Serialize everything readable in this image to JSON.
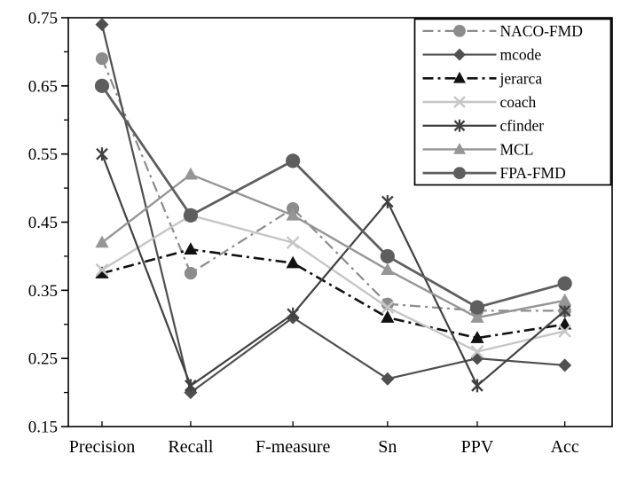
{
  "chart_data": {
    "type": "line",
    "title": "",
    "xlabel": "",
    "ylabel": "",
    "categories": [
      "Precision",
      "Recall",
      "F-measure",
      "Sn",
      "PPV",
      "Acc"
    ],
    "ylim": [
      0.15,
      0.75
    ],
    "ytick_step": 0.1,
    "ytick_minor_step": 0.05,
    "ytick_labels": [
      "0.75",
      "0.65",
      "0.55",
      "0.45",
      "0.35",
      "0.25",
      "0.15"
    ],
    "grid": false,
    "legend_position": "top-right",
    "background_color": "#ffffff",
    "axis_color": "#000000",
    "series": [
      {
        "name": "NACO-FMD",
        "marker": "circle",
        "line_style": "dash-dot",
        "color": "#8c8c8c",
        "width": 2.2,
        "values": [
          0.69,
          0.375,
          0.47,
          0.33,
          0.32,
          0.32
        ]
      },
      {
        "name": "mcode",
        "marker": "diamond",
        "line_style": "solid",
        "color": "#4f4f4f",
        "width": 2.2,
        "values": [
          0.74,
          0.2,
          0.31,
          0.22,
          0.25,
          0.24
        ]
      },
      {
        "name": "jerarca",
        "marker": "triangle",
        "line_style": "dash-dot",
        "color": "#111111",
        "width": 2.6,
        "values": [
          0.375,
          0.41,
          0.39,
          0.31,
          0.28,
          0.3
        ]
      },
      {
        "name": "coach",
        "marker": "x",
        "line_style": "solid",
        "color": "#c6c6c6",
        "width": 2.4,
        "values": [
          0.38,
          0.46,
          0.42,
          0.325,
          0.26,
          0.29
        ]
      },
      {
        "name": "cfinder",
        "marker": "asterisk",
        "line_style": "solid",
        "color": "#414141",
        "width": 2.2,
        "values": [
          0.55,
          0.21,
          0.315,
          0.48,
          0.21,
          0.32
        ]
      },
      {
        "name": "MCL",
        "marker": "triangle",
        "line_style": "solid",
        "color": "#969696",
        "width": 2.4,
        "values": [
          0.42,
          0.52,
          0.46,
          0.38,
          0.31,
          0.335
        ]
      },
      {
        "name": "FPA-FMD",
        "marker": "circle",
        "line_style": "solid",
        "color": "#5e5e5e",
        "width": 2.8,
        "values": [
          0.65,
          0.46,
          0.54,
          0.4,
          0.325,
          0.36
        ]
      }
    ]
  }
}
